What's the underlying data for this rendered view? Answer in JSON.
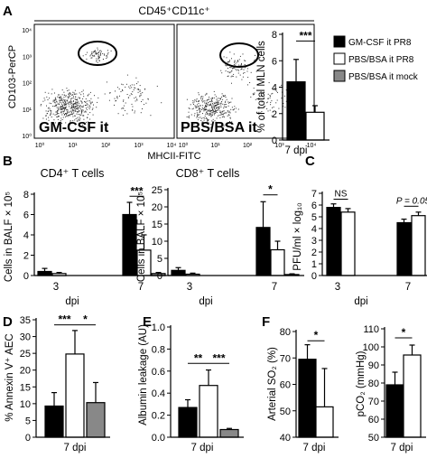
{
  "panel_letters": [
    "A",
    "B",
    "C",
    "D",
    "E",
    "F"
  ],
  "flow": {
    "gate": "CD45⁺CD11c⁺",
    "ylabel": "CD103-PerCP",
    "xlabel": "MHCII-FITC",
    "plot_labels": [
      "GM-CSF it",
      "PBS/BSA it"
    ],
    "ticks": [
      "10⁰",
      "10¹",
      "10²",
      "10³",
      "10⁴"
    ]
  },
  "legend": [
    "GM-CSF it PR8",
    "PBS/BSA it PR8",
    "PBS/BSA it mock"
  ],
  "colors": {
    "gm_csf_pr8": "#000000",
    "pbs_bsa_pr8": "#ffffff",
    "pbs_bsa_mock": "#888888"
  },
  "chart_data": [
    {
      "id": "A",
      "type": "bar",
      "ylabel": "% of total MLN cells",
      "xlabel": "7 dpi",
      "ylim": [
        0,
        8
      ],
      "yticks": [
        0,
        2,
        4,
        6,
        8
      ],
      "series": [
        {
          "name": "GM-CSF it PR8",
          "values": [
            4.4
          ],
          "errors": [
            1.7
          ]
        },
        {
          "name": "PBS/BSA it PR8",
          "values": [
            2.1
          ],
          "errors": [
            0.5
          ]
        }
      ],
      "annotations": [
        "***"
      ]
    },
    {
      "id": "B1",
      "type": "bar",
      "title": "CD4⁺ T cells",
      "ylabel": "Cells in BALF × 10⁵",
      "xlabel": "dpi",
      "categories": [
        "3",
        "7"
      ],
      "ylim": [
        0,
        8
      ],
      "yticks": [
        0,
        2,
        4,
        6,
        8
      ],
      "series": [
        {
          "name": "GM-CSF it PR8",
          "values": [
            0.4,
            6.0
          ],
          "errors": [
            0.3,
            1.2
          ]
        },
        {
          "name": "PBS/BSA it PR8",
          "values": [
            0.2,
            2.5
          ],
          "errors": [
            0.1,
            1.5
          ]
        },
        {
          "name": "PBS/BSA it mock",
          "values": [
            null,
            0.2
          ],
          "errors": [
            null,
            0.1
          ]
        }
      ],
      "annotations": [
        "***"
      ]
    },
    {
      "id": "B2",
      "type": "bar",
      "title": "CD8⁺ T cells",
      "ylabel": "Cells in BALF × 10⁵",
      "xlabel": "dpi",
      "categories": [
        "3",
        "7"
      ],
      "ylim": [
        0,
        25
      ],
      "yticks": [
        0,
        5,
        10,
        15,
        20,
        25
      ],
      "series": [
        {
          "name": "GM-CSF it PR8",
          "values": [
            1.5,
            14.0
          ],
          "errors": [
            0.8,
            7.5
          ]
        },
        {
          "name": "PBS/BSA it PR8",
          "values": [
            0.4,
            7.5
          ],
          "errors": [
            0.3,
            2.5
          ]
        },
        {
          "name": "PBS/BSA it mock",
          "values": [
            null,
            0.3
          ],
          "errors": [
            null,
            0.2
          ]
        }
      ],
      "annotations": [
        "*"
      ]
    },
    {
      "id": "C",
      "type": "bar",
      "ylabel": "PFU/ml × log₁₀",
      "xlabel": "dpi",
      "categories": [
        "3",
        "7"
      ],
      "ylim": [
        0,
        7
      ],
      "yticks": [
        0,
        1,
        2,
        3,
        4,
        5,
        6,
        7
      ],
      "series": [
        {
          "name": "GM-CSF it PR8",
          "values": [
            5.8,
            4.5
          ],
          "errors": [
            0.3,
            0.3
          ]
        },
        {
          "name": "PBS/BSA it PR8",
          "values": [
            5.4,
            5.1
          ],
          "errors": [
            0.3,
            0.3
          ]
        }
      ],
      "annotations": [
        "NS",
        "P = 0.05"
      ]
    },
    {
      "id": "D",
      "type": "bar",
      "ylabel": "% Annexin V⁺ AEC",
      "xlabel": "7 dpi",
      "ylim": [
        0,
        35
      ],
      "yticks": [
        0,
        5,
        10,
        15,
        20,
        25,
        30,
        35
      ],
      "series": [
        {
          "name": "GM-CSF it PR8",
          "values": [
            9.3
          ],
          "errors": [
            4.0
          ]
        },
        {
          "name": "PBS/BSA it PR8",
          "values": [
            24.8
          ],
          "errors": [
            7.0
          ]
        },
        {
          "name": "PBS/BSA it mock",
          "values": [
            10.3
          ],
          "errors": [
            6.0
          ]
        }
      ],
      "annotations": [
        "***",
        "*"
      ]
    },
    {
      "id": "E",
      "type": "bar",
      "ylabel": "Albumin leakage (AU)",
      "xlabel": "7 dpi",
      "ylim": [
        0,
        1.0
      ],
      "yticks": [
        0,
        0.2,
        0.4,
        0.6,
        0.8,
        1.0
      ],
      "series": [
        {
          "name": "GM-CSF it PR8",
          "values": [
            0.27
          ],
          "errors": [
            0.07
          ]
        },
        {
          "name": "PBS/BSA it PR8",
          "values": [
            0.47
          ],
          "errors": [
            0.14
          ]
        },
        {
          "name": "PBS/BSA it mock",
          "values": [
            0.07
          ],
          "errors": [
            0.01
          ]
        }
      ],
      "annotations": [
        "**",
        "***"
      ]
    },
    {
      "id": "F1",
      "type": "bar",
      "ylabel": "Arterial SO₂ (%)",
      "xlabel": "7 dpi",
      "ylim": [
        40,
        80
      ],
      "yticks": [
        40,
        50,
        60,
        70,
        80
      ],
      "series": [
        {
          "name": "GM-CSF it PR8",
          "values": [
            69.5
          ],
          "errors": [
            5.5
          ]
        },
        {
          "name": "PBS/BSA it PR8",
          "values": [
            51.5
          ],
          "errors": [
            14.5
          ]
        }
      ],
      "annotations": [
        "*"
      ]
    },
    {
      "id": "F2",
      "type": "bar",
      "ylabel": "pCO₂ (mmHg)",
      "xlabel": "7 dpi",
      "ylim": [
        50,
        110
      ],
      "yticks": [
        50,
        60,
        70,
        80,
        90,
        100,
        110
      ],
      "series": [
        {
          "name": "GM-CSF it PR8",
          "values": [
            79
          ],
          "errors": [
            7
          ]
        },
        {
          "name": "PBS/BSA it PR8",
          "values": [
            95.5
          ],
          "errors": [
            5.5
          ]
        }
      ],
      "annotations": [
        "*"
      ]
    }
  ]
}
